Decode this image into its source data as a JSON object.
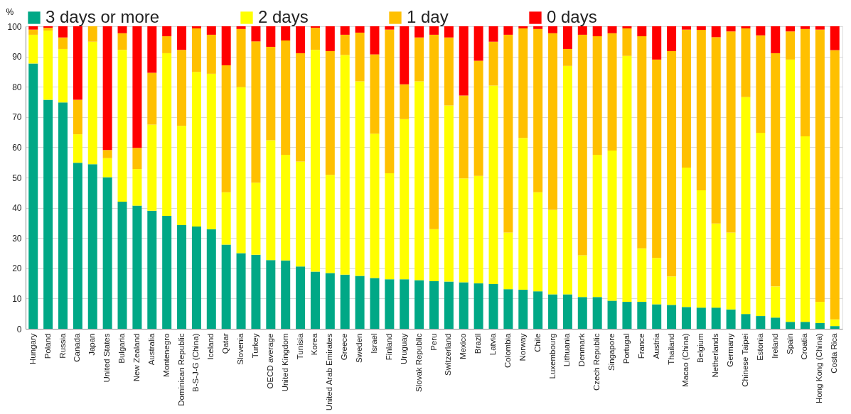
{
  "chart_data": {
    "type": "bar",
    "stacked": true,
    "ylabel": "%",
    "categories": [
      "Hungary",
      "Poland",
      "Russia",
      "Canada",
      "Japan",
      "United States",
      "Bulgaria",
      "New Zealand",
      "Australia",
      "Montenegro",
      "Dominican Republic",
      "B-S-J-G (China)",
      "Iceland",
      "Qatar",
      "Slovenia",
      "Turkey",
      "OECD average",
      "United Kingdom",
      "Tunisia",
      "Korea",
      "United Arab Emirates",
      "Greece",
      "Sweden",
      "Israel",
      "Finland",
      "Uruguay",
      "Slovak Republic",
      "Peru",
      "Switzerland",
      "Mexico",
      "Brazil",
      "Latvia",
      "Colombia",
      "Norway",
      "Chile",
      "Luxembourg",
      "Lithuania",
      "Denmark",
      "Czech Republic",
      "Singapore",
      "Portugal",
      "France",
      "Austria",
      "Thailand",
      "Macao (China)",
      "Belgium",
      "Netherlands",
      "Germany",
      "Chinese Taipei",
      "Estonia",
      "Ireland",
      "Spain",
      "Croatia",
      "Hong Kong (China)",
      "Costa Rica"
    ],
    "series": [
      {
        "name": "3 days or more",
        "color": "#00a886",
        "values": [
          87.7,
          75.7,
          74.8,
          54.9,
          54.4,
          50.1,
          42.0,
          40.7,
          39.0,
          37.3,
          34.3,
          33.8,
          32.9,
          27.8,
          25.0,
          24.5,
          22.7,
          22.6,
          20.6,
          18.9,
          18.4,
          17.9,
          17.5,
          16.8,
          16.4,
          16.4,
          16.1,
          15.7,
          15.6,
          15.4,
          15.0,
          14.8,
          13.1,
          12.9,
          12.4,
          11.4,
          11.4,
          10.5,
          10.5,
          9.3,
          8.9,
          8.9,
          8.1,
          7.9,
          7.2,
          7.0,
          7.0,
          6.4,
          4.9,
          4.2,
          3.7,
          2.3,
          2.3,
          1.9,
          0.9
        ]
      },
      {
        "name": "2 days",
        "color": "#ffff00",
        "values": [
          9.5,
          22.9,
          17.7,
          9.4,
          40.5,
          6.3,
          50.2,
          12.1,
          28.5,
          53.8,
          32.8,
          51.1,
          51.4,
          17.3,
          54.9,
          23.8,
          39.6,
          34.9,
          34.7,
          73.3,
          32.5,
          72.6,
          64.3,
          47.7,
          35.0,
          52.9,
          65.7,
          17.2,
          58.2,
          34.3,
          35.5,
          65.6,
          18.7,
          50.2,
          32.7,
          27.9,
          75.5,
          13.8,
          47.0,
          49.6,
          81.3,
          17.7,
          15.3,
          9.4,
          46.1,
          38.8,
          27.8,
          25.4,
          71.7,
          60.6,
          10.3,
          86.7,
          61.3,
          7.0,
          2.2
        ]
      },
      {
        "name": "1 day",
        "color": "#ffc000",
        "values": [
          1.7,
          0.9,
          3.8,
          11.4,
          5.1,
          2.7,
          5.5,
          7.0,
          17.1,
          5.6,
          25.1,
          14.4,
          12.9,
          42.0,
          19.2,
          46.7,
          30.9,
          37.8,
          35.8,
          7.3,
          40.9,
          6.7,
          16.1,
          26.2,
          47.5,
          11.5,
          14.5,
          64.3,
          22.5,
          27.4,
          38.1,
          14.5,
          65.4,
          36.2,
          54.0,
          58.4,
          5.6,
          72.9,
          39.2,
          38.8,
          9.1,
          70.1,
          65.6,
          74.5,
          45.6,
          53.0,
          61.6,
          66.5,
          22.7,
          32.2,
          77.1,
          9.3,
          35.5,
          90.0,
          89.0
        ]
      },
      {
        "name": "0 days",
        "color": "#ff0000",
        "values": [
          1.1,
          0.5,
          3.7,
          24.3,
          0.0,
          40.9,
          2.3,
          40.2,
          15.4,
          3.3,
          7.8,
          0.7,
          2.8,
          12.9,
          0.9,
          5.0,
          6.8,
          4.7,
          8.9,
          0.5,
          8.2,
          2.8,
          2.1,
          9.3,
          1.1,
          19.2,
          3.7,
          2.8,
          3.7,
          22.9,
          11.4,
          5.1,
          2.8,
          0.7,
          0.9,
          2.3,
          7.5,
          2.8,
          3.3,
          2.3,
          0.7,
          3.3,
          11.0,
          8.2,
          1.1,
          1.2,
          3.6,
          1.7,
          0.7,
          3.0,
          8.9,
          1.7,
          0.9,
          1.1,
          7.9
        ]
      }
    ],
    "ylim": [
      0,
      100
    ],
    "yticks": [
      0,
      10,
      20,
      30,
      40,
      50,
      60,
      70,
      80,
      90,
      100
    ],
    "grid": "y",
    "legend": "top"
  }
}
